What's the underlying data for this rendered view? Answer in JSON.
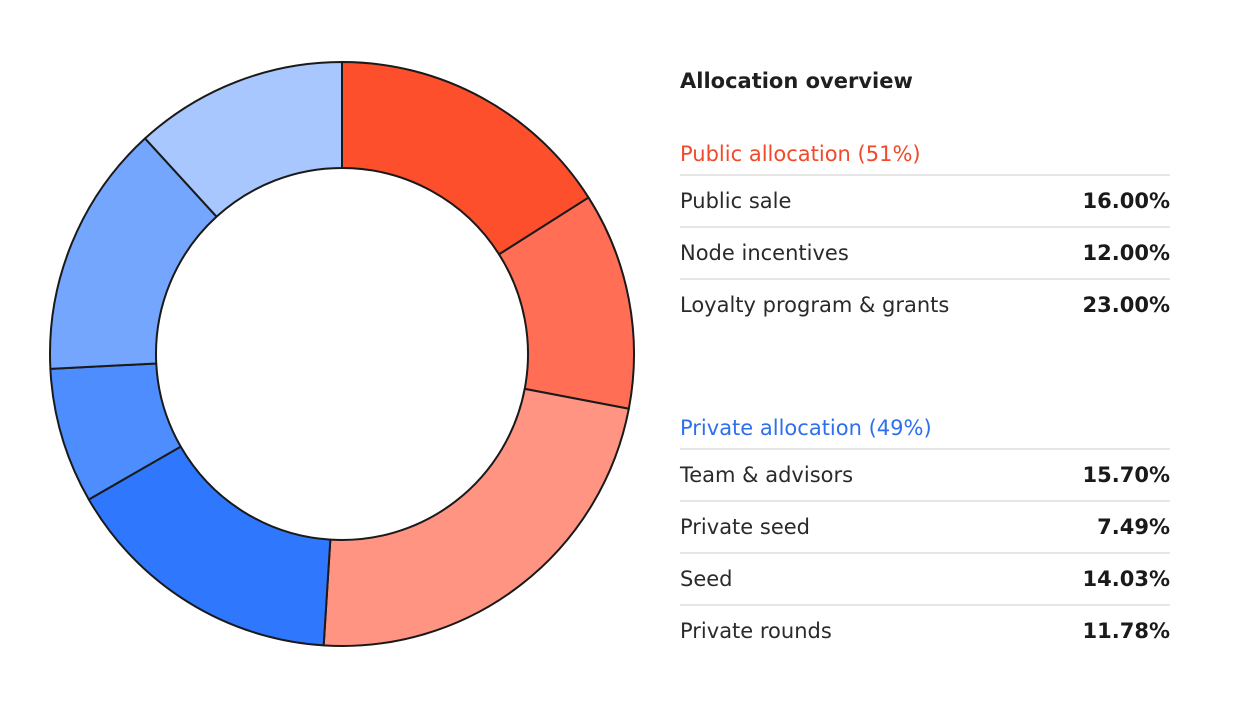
{
  "overview_title": "Allocation overview",
  "public_group": {
    "heading": "Public allocation (51%)",
    "color": "#f04a2a",
    "items": [
      {
        "label": "Public sale",
        "value": "16.00%"
      },
      {
        "label": "Node incentives",
        "value": "12.00%"
      },
      {
        "label": "Loyalty program & grants",
        "value": "23.00%"
      }
    ]
  },
  "private_group": {
    "heading": "Private allocation (49%)",
    "color": "#2e6ff0",
    "items": [
      {
        "label": "Team & advisors",
        "value": "15.70%"
      },
      {
        "label": "Private seed",
        "value": "7.49%"
      },
      {
        "label": "Seed",
        "value": "14.03%"
      },
      {
        "label": "Private rounds",
        "value": "11.78%"
      }
    ]
  },
  "chart_data": {
    "type": "pie",
    "donut": true,
    "categories": [
      "Public sale",
      "Node incentives",
      "Loyalty program & grants",
      "Team & advisors",
      "Private seed",
      "Seed",
      "Private rounds"
    ],
    "values": [
      16.0,
      12.0,
      23.0,
      15.7,
      7.49,
      14.03,
      11.78
    ],
    "colors": [
      "#fe4f2d",
      "#ff6e55",
      "#ff9482",
      "#2f77fd",
      "#4d8dfd",
      "#74a6fd",
      "#a7c7fe"
    ],
    "start": "12 o'clock",
    "direction": "clockwise",
    "legend": "right"
  }
}
